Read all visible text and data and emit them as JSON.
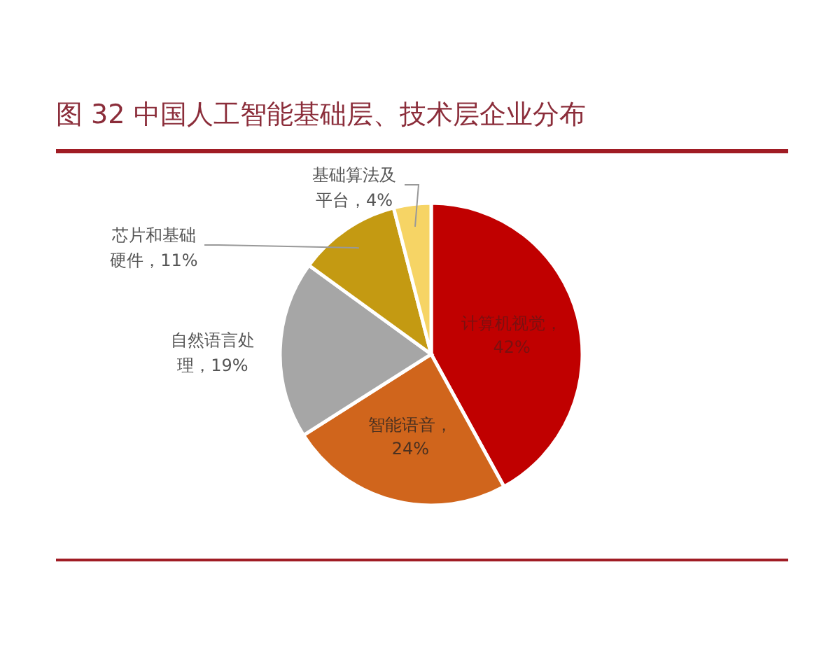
{
  "chart_data": {
    "type": "pie",
    "title": "图 32 中国人工智能基础层、技术层企业分布",
    "categories": [
      "计算机视觉",
      "智能语音",
      "自然语言处理",
      "芯片和基础硬件",
      "基础算法及平台"
    ],
    "values": [
      42,
      24,
      19,
      11,
      4
    ],
    "value_labels": [
      "，42%",
      "，24%",
      "，19%",
      "，11%",
      "，4%"
    ],
    "colors": [
      "#c00000",
      "#d0651c",
      "#a6a6a6",
      "#c49a12",
      "#f6d465"
    ]
  }
}
